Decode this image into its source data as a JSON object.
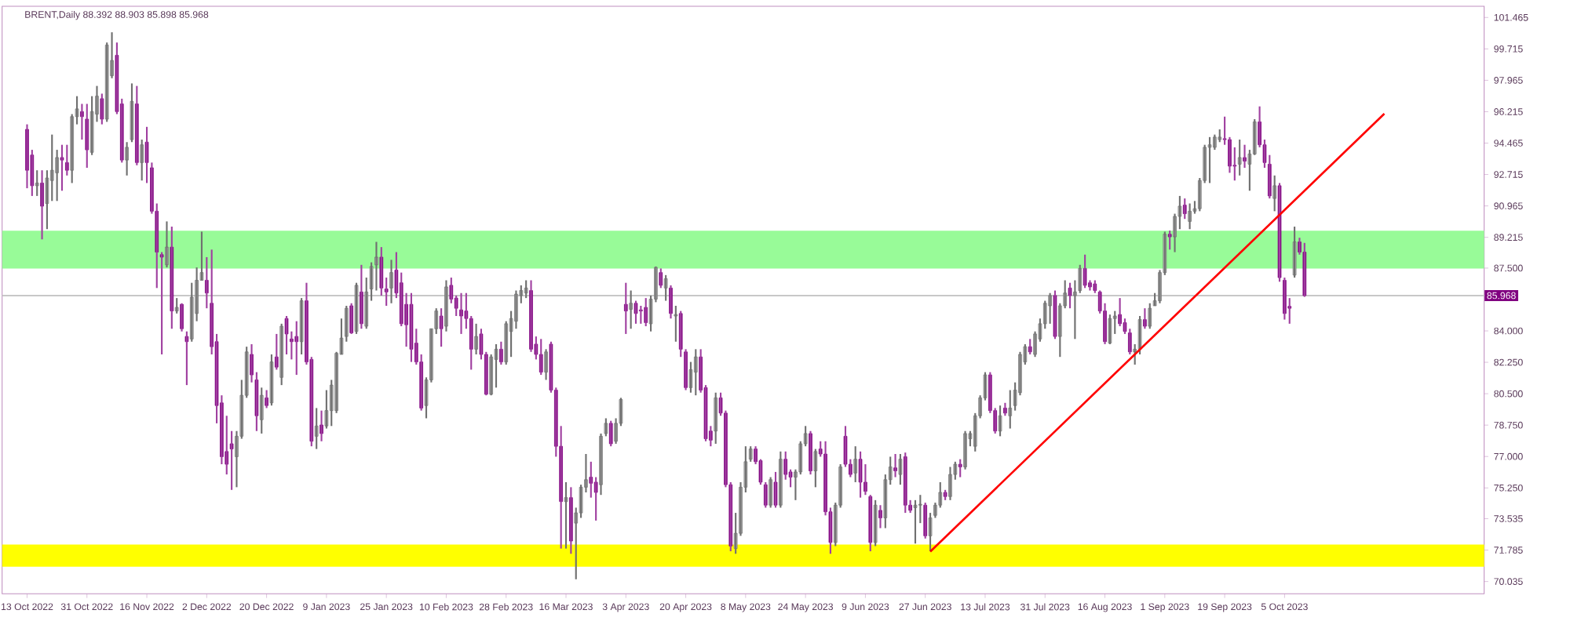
{
  "chart_data": {
    "type": "candlestick",
    "title": "BRENT,Daily  88.392 88.903 85.898 85.968",
    "categories": [
      "13 Oct 2022",
      null,
      null,
      null,
      null,
      null,
      null,
      null,
      null,
      null,
      null,
      null,
      "31 Oct 2022",
      null,
      null,
      null,
      null,
      null,
      null,
      null,
      null,
      null,
      null,
      null,
      "16 Nov 2022",
      null,
      null,
      null,
      null,
      null,
      null,
      null,
      null,
      null,
      null,
      null,
      "2 Dec 2022",
      null,
      null,
      null,
      null,
      null,
      null,
      null,
      null,
      null,
      null,
      null,
      "20 Dec 2022",
      null,
      null,
      null,
      null,
      null,
      null,
      null,
      null,
      null,
      null,
      null,
      "9 Jan 2023",
      null,
      null,
      null,
      null,
      null,
      null,
      null,
      null,
      null,
      null,
      null,
      "25 Jan 2023",
      null,
      null,
      null,
      null,
      null,
      null,
      null,
      null,
      null,
      null,
      null,
      "10 Feb 2023",
      null,
      null,
      null,
      null,
      null,
      null,
      null,
      null,
      null,
      null,
      null,
      "28 Feb 2023",
      null,
      null,
      null,
      null,
      null,
      null,
      null,
      null,
      null,
      null,
      null,
      "16 Mar 2023",
      null,
      null,
      null,
      null,
      null,
      null,
      null,
      null,
      null,
      null,
      null,
      "3 Apr 2023",
      null,
      null,
      null,
      null,
      null,
      null,
      null,
      null,
      null,
      null,
      null,
      "20 Apr 2023",
      null,
      null,
      null,
      null,
      null,
      null,
      null,
      null,
      null,
      null,
      null,
      "8 May 2023",
      null,
      null,
      null,
      null,
      null,
      null,
      null,
      null,
      null,
      null,
      null,
      "24 May 2023",
      null,
      null,
      null,
      null,
      null,
      null,
      null,
      null,
      null,
      null,
      null,
      "9 Jun 2023",
      null,
      null,
      null,
      null,
      null,
      null,
      null,
      null,
      null,
      null,
      null,
      "27 Jun 2023",
      null,
      null,
      null,
      null,
      null,
      null,
      null,
      null,
      null,
      null,
      null,
      "13 Jul 2023",
      null,
      null,
      null,
      null,
      null,
      null,
      null,
      null,
      null,
      null,
      null,
      "31 Jul 2023",
      null,
      null,
      null,
      null,
      null,
      null,
      null,
      null,
      null,
      null,
      null,
      "16 Aug 2023",
      null,
      null,
      null,
      null,
      null,
      null,
      null,
      null,
      null,
      null,
      null,
      "1 Sep 2023",
      null,
      null,
      null,
      null,
      null,
      null,
      null,
      null,
      null,
      null,
      null,
      "19 Sep 2023",
      null,
      null,
      null,
      null,
      null,
      null,
      null,
      null,
      null,
      null,
      null,
      "5 Oct 2023",
      null,
      null,
      null,
      null,
      null,
      null,
      null,
      null,
      null,
      null,
      null,
      null,
      null,
      null,
      null,
      null,
      null,
      null,
      null,
      null,
      null,
      null,
      null,
      null,
      null,
      null,
      null,
      null,
      null,
      null,
      null,
      null,
      null,
      null,
      null,
      null,
      null,
      null,
      null
    ],
    "ohlc": [
      [
        95.23,
        95.51,
        91.95,
        92.95
      ],
      [
        93.8,
        94.09,
        91.52,
        92.09
      ],
      [
        92.09,
        92.95,
        91.52,
        92.24
      ],
      [
        92.24,
        92.95,
        89.1,
        90.95
      ],
      [
        91.1,
        92.95,
        89.67,
        92.52
      ],
      [
        92.38,
        94.94,
        91.24,
        92.95
      ],
      [
        92.81,
        94.09,
        91.24,
        93.66
      ],
      [
        93.66,
        94.37,
        91.81,
        93.52
      ],
      [
        93.38,
        94.37,
        92.66,
        92.95
      ],
      [
        92.95,
        96.08,
        92.24,
        95.94
      ],
      [
        95.94,
        97.08,
        95.51,
        96.37
      ],
      [
        96.22,
        96.65,
        94.66,
        95.94
      ],
      [
        95.8,
        96.65,
        93.09,
        94.09
      ],
      [
        93.95,
        97.08,
        93.8,
        96.22
      ],
      [
        96.08,
        97.65,
        95.65,
        97.08
      ],
      [
        96.94,
        97.22,
        95.51,
        95.8
      ],
      [
        95.8,
        100.07,
        95.65,
        99.93
      ],
      [
        98.22,
        100.64,
        98.08,
        99.07
      ],
      [
        99.36,
        100.07,
        96.08,
        96.22
      ],
      [
        96.65,
        96.94,
        93.38,
        93.52
      ],
      [
        93.52,
        94.52,
        92.66,
        94.23
      ],
      [
        94.66,
        97.79,
        94.52,
        96.79
      ],
      [
        96.65,
        97.65,
        93.23,
        93.38
      ],
      [
        93.38,
        94.66,
        92.38,
        94.37
      ],
      [
        94.52,
        95.37,
        92.24,
        93.38
      ],
      [
        93.09,
        93.38,
        90.53,
        90.67
      ],
      [
        90.67,
        91.1,
        86.39,
        88.39
      ],
      [
        88.25,
        88.39,
        82.69,
        88.11
      ],
      [
        87.68,
        90.1,
        87.54,
        88.67
      ],
      [
        88.67,
        89.81,
        84.12,
        85.11
      ],
      [
        85.11,
        85.83,
        84.97,
        85.31
      ],
      [
        85.48,
        85.54,
        83.97,
        84.12
      ],
      [
        83.69,
        83.97,
        80.98,
        83.4
      ],
      [
        83.55,
        86.68,
        83.4,
        85.88
      ],
      [
        84.97,
        87.54,
        84.54,
        86.82
      ],
      [
        86.82,
        89.53,
        86.82,
        87.25
      ],
      [
        86.82,
        88.11,
        85.26,
        86.11
      ],
      [
        85.54,
        88.53,
        82.69,
        83.12
      ],
      [
        83.4,
        83.83,
        78.85,
        79.84
      ],
      [
        79.99,
        80.41,
        76.57,
        76.99
      ],
      [
        77.28,
        79.27,
        76.0,
        76.57
      ],
      [
        77.71,
        78.42,
        75.14,
        77.42
      ],
      [
        76.99,
        78.42,
        75.29,
        78.13
      ],
      [
        78.13,
        81.27,
        77.99,
        80.41
      ],
      [
        80.41,
        83.12,
        80.27,
        82.83
      ],
      [
        82.69,
        83.26,
        81.13,
        81.55
      ],
      [
        81.27,
        81.7,
        78.42,
        79.27
      ],
      [
        79.05,
        80.84,
        78.28,
        80.41
      ],
      [
        80.27,
        80.7,
        79.7,
        79.84
      ],
      [
        79.99,
        82.69,
        79.84,
        82.27
      ],
      [
        82.55,
        83.83,
        81.84,
        81.98
      ],
      [
        81.41,
        84.4,
        80.98,
        84.26
      ],
      [
        84.69,
        84.83,
        82.69,
        83.83
      ],
      [
        83.55,
        83.97,
        82.41,
        83.4
      ],
      [
        83.69,
        84.54,
        81.55,
        83.4
      ],
      [
        83.4,
        85.83,
        82.69,
        85.68
      ],
      [
        85.68,
        86.68,
        82.12,
        82.27
      ],
      [
        82.41,
        82.55,
        77.57,
        77.85
      ],
      [
        78.13,
        79.7,
        77.42,
        78.7
      ],
      [
        78.76,
        79.56,
        77.85,
        78.28
      ],
      [
        78.7,
        80.7,
        78.56,
        79.56
      ],
      [
        79.56,
        81.27,
        78.7,
        80.98
      ],
      [
        79.56,
        82.83,
        79.42,
        82.75
      ],
      [
        82.69,
        84.69,
        82.69,
        83.6
      ],
      [
        83.69,
        85.4,
        83.4,
        85.26
      ],
      [
        85.4,
        85.54,
        83.83,
        83.89
      ],
      [
        83.97,
        86.68,
        83.83,
        86.54
      ],
      [
        86.17,
        87.68,
        84.12,
        84.4
      ],
      [
        84.26,
        86.97,
        84.12,
        86.17
      ],
      [
        86.34,
        87.82,
        85.68,
        87.59
      ],
      [
        87.68,
        88.96,
        86.25,
        88.11
      ],
      [
        88.11,
        88.67,
        85.97,
        86.39
      ],
      [
        86.34,
        86.97,
        85.4,
        86.17
      ],
      [
        86.39,
        87.96,
        85.54,
        87.25
      ],
      [
        87.39,
        88.39,
        85.83,
        86.11
      ],
      [
        86.68,
        87.25,
        84.26,
        84.4
      ],
      [
        85.48,
        86.11,
        83.12,
        84.34
      ],
      [
        85.48,
        86.11,
        82.27,
        82.98
      ],
      [
        83.32,
        84.12,
        82.12,
        82.27
      ],
      [
        82.27,
        82.69,
        79.56,
        79.7
      ],
      [
        79.84,
        81.41,
        79.13,
        81.27
      ],
      [
        81.27,
        84.12,
        81.13,
        84.12
      ],
      [
        84.12,
        85.26,
        83.83,
        85.11
      ],
      [
        84.83,
        85.26,
        83.12,
        84.12
      ],
      [
        84.26,
        86.82,
        83.97,
        86.45
      ],
      [
        86.54,
        86.97,
        85.54,
        85.77
      ],
      [
        85.83,
        85.97,
        84.83,
        85.26
      ],
      [
        85.17,
        86.11,
        83.83,
        84.83
      ],
      [
        85.11,
        86.11,
        84.12,
        84.69
      ],
      [
        84.69,
        84.83,
        81.84,
        82.98
      ],
      [
        82.98,
        84.4,
        82.69,
        83.69
      ],
      [
        83.83,
        84.12,
        82.41,
        82.69
      ],
      [
        82.69,
        82.83,
        80.41,
        80.47
      ],
      [
        80.47,
        82.69,
        80.41,
        82.55
      ],
      [
        82.41,
        83.26,
        80.84,
        82.98
      ],
      [
        82.98,
        83.4,
        82.12,
        82.27
      ],
      [
        82.27,
        84.54,
        82.12,
        84.4
      ],
      [
        83.97,
        85.11,
        82.55,
        84.69
      ],
      [
        84.54,
        86.25,
        84.12,
        86.05
      ],
      [
        85.97,
        86.54,
        85.54,
        86.25
      ],
      [
        86.11,
        86.82,
        85.83,
        86.39
      ],
      [
        86.25,
        86.82,
        82.83,
        82.98
      ],
      [
        83.26,
        83.69,
        82.41,
        82.69
      ],
      [
        82.69,
        83.55,
        81.55,
        81.7
      ],
      [
        81.7,
        82.98,
        81.27,
        82.83
      ],
      [
        83.26,
        83.4,
        80.56,
        80.7
      ],
      [
        80.7,
        80.84,
        76.99,
        77.57
      ],
      [
        77.57,
        78.7,
        71.87,
        74.49
      ],
      [
        74.49,
        75.57,
        71.87,
        74.71
      ],
      [
        74.71,
        75.29,
        71.58,
        72.29
      ],
      [
        73.29,
        74.15,
        70.16,
        73.86
      ],
      [
        73.86,
        75.43,
        73.58,
        75.29
      ],
      [
        75.29,
        77.14,
        75.0,
        75.71
      ],
      [
        75.85,
        76.71,
        74.71,
        75.51
      ],
      [
        75.57,
        75.85,
        73.43,
        75.0
      ],
      [
        75.43,
        78.28,
        74.86,
        78.13
      ],
      [
        78.28,
        79.13,
        78.13,
        78.85
      ],
      [
        78.85,
        78.99,
        77.57,
        77.71
      ],
      [
        77.85,
        79.13,
        77.71,
        78.85
      ],
      [
        78.85,
        80.27,
        78.7,
        80.18
      ],
      [
        85.48,
        86.68,
        83.83,
        85.11
      ],
      [
        85.2,
        86.25,
        84.12,
        85.54
      ],
      [
        85.54,
        85.68,
        84.4,
        84.97
      ],
      [
        85.17,
        85.4,
        84.4,
        85.11
      ],
      [
        85.31,
        85.83,
        84.26,
        84.46
      ],
      [
        84.4,
        85.97,
        83.97,
        85.77
      ],
      [
        85.77,
        87.59,
        85.6,
        87.54
      ],
      [
        87.25,
        87.48,
        86.39,
        86.54
      ],
      [
        86.39,
        87.11,
        85.68,
        86.91
      ],
      [
        86.39,
        86.54,
        84.69,
        84.97
      ],
      [
        84.83,
        85.4,
        83.4,
        84.91
      ],
      [
        84.97,
        85.11,
        82.55,
        82.98
      ],
      [
        82.83,
        82.98,
        80.7,
        80.84
      ],
      [
        80.84,
        82.27,
        80.56,
        81.84
      ],
      [
        81.7,
        82.98,
        80.41,
        82.55
      ],
      [
        82.55,
        82.98,
        80.56,
        80.7
      ],
      [
        80.84,
        80.98,
        77.85,
        77.99
      ],
      [
        78.42,
        78.7,
        77.57,
        77.91
      ],
      [
        78.42,
        80.56,
        77.71,
        80.27
      ],
      [
        80.27,
        80.56,
        79.27,
        79.42
      ],
      [
        79.42,
        79.56,
        75.29,
        75.43
      ],
      [
        75.43,
        75.57,
        71.72,
        72.01
      ],
      [
        71.87,
        73.86,
        71.58,
        72.72
      ],
      [
        72.72,
        75.57,
        72.58,
        75.29
      ],
      [
        75.29,
        77.57,
        75.0,
        76.71
      ],
      [
        76.85,
        77.57,
        76.71,
        77.42
      ],
      [
        77.42,
        77.57,
        76.57,
        76.71
      ],
      [
        76.77,
        76.85,
        75.43,
        75.57
      ],
      [
        75.43,
        75.57,
        74.15,
        74.29
      ],
      [
        74.29,
        75.85,
        74.15,
        75.71
      ],
      [
        75.57,
        76.14,
        74.15,
        74.29
      ],
      [
        74.29,
        77.28,
        74.15,
        76.85
      ],
      [
        76.85,
        77.28,
        75.71,
        76.0
      ],
      [
        76.14,
        76.28,
        75.29,
        75.85
      ],
      [
        75.85,
        76.28,
        74.57,
        76.14
      ],
      [
        76.14,
        77.85,
        76.0,
        77.71
      ],
      [
        77.71,
        78.7,
        77.57,
        78.28
      ],
      [
        78.28,
        78.42,
        76.0,
        76.2
      ],
      [
        76.2,
        77.42,
        75.29,
        77.28
      ],
      [
        77.42,
        77.85,
        76.99,
        77.14
      ],
      [
        77.14,
        77.85,
        73.72,
        73.92
      ],
      [
        73.92,
        74.15,
        71.58,
        72.21
      ],
      [
        72.21,
        74.43,
        72.01,
        74.29
      ],
      [
        74.29,
        76.57,
        74.15,
        76.42
      ],
      [
        78.13,
        78.7,
        76.42,
        76.57
      ],
      [
        76.57,
        76.85,
        75.85,
        76.0
      ],
      [
        76.08,
        77.57,
        75.57,
        76.85
      ],
      [
        76.85,
        77.28,
        74.71,
        75.57
      ],
      [
        75.57,
        76.57,
        74.86,
        75.06
      ],
      [
        74.77,
        74.86,
        71.72,
        72.21
      ],
      [
        72.21,
        74.57,
        72.01,
        74.29
      ],
      [
        74.0,
        74.29,
        73.01,
        73.58
      ],
      [
        73.58,
        76.0,
        73.01,
        75.71
      ],
      [
        75.71,
        76.99,
        75.43,
        76.42
      ],
      [
        76.37,
        77.14,
        75.85,
        76.2
      ],
      [
        76.0,
        77.14,
        75.43,
        76.85
      ],
      [
        76.99,
        77.22,
        73.86,
        74.29
      ],
      [
        74.29,
        74.57,
        73.86,
        74.0
      ],
      [
        74.15,
        74.57,
        72.15,
        74.29
      ],
      [
        74.29,
        74.86,
        73.29,
        74.34
      ],
      [
        74.29,
        74.43,
        72.43,
        72.58
      ],
      [
        72.58,
        73.86,
        71.72,
        73.58
      ],
      [
        73.72,
        74.43,
        73.58,
        74.29
      ],
      [
        74.29,
        75.57,
        74.15,
        75.0
      ],
      [
        75.0,
        75.14,
        74.57,
        74.77
      ],
      [
        74.77,
        76.42,
        74.57,
        76.0
      ],
      [
        76.0,
        76.71,
        75.71,
        76.57
      ],
      [
        76.57,
        76.85,
        75.85,
        76.42
      ],
      [
        76.42,
        78.42,
        76.28,
        78.28
      ],
      [
        77.99,
        78.42,
        77.57,
        78.28
      ],
      [
        77.57,
        79.42,
        77.28,
        79.27
      ],
      [
        79.27,
        80.41,
        79.13,
        80.27
      ],
      [
        80.27,
        81.7,
        80.13,
        81.55
      ],
      [
        81.55,
        81.7,
        79.42,
        79.56
      ],
      [
        79.56,
        79.7,
        78.28,
        78.42
      ],
      [
        78.42,
        79.84,
        78.13,
        79.27
      ],
      [
        79.7,
        79.99,
        79.27,
        79.42
      ],
      [
        79.27,
        80.7,
        78.56,
        79.7
      ],
      [
        79.84,
        81.13,
        79.56,
        80.7
      ],
      [
        80.56,
        82.83,
        80.41,
        82.69
      ],
      [
        82.27,
        83.26,
        82.12,
        83.12
      ],
      [
        83.12,
        83.55,
        82.69,
        82.83
      ],
      [
        82.69,
        83.97,
        82.55,
        83.83
      ],
      [
        83.55,
        84.69,
        83.4,
        84.4
      ],
      [
        84.4,
        85.68,
        84.12,
        85.54
      ],
      [
        85.4,
        86.11,
        84.4,
        85.97
      ],
      [
        85.97,
        86.25,
        83.55,
        83.69
      ],
      [
        83.69,
        85.54,
        82.55,
        85.4
      ],
      [
        85.4,
        86.82,
        85.26,
        86.11
      ],
      [
        86.39,
        86.68,
        85.26,
        85.97
      ],
      [
        85.97,
        86.82,
        83.55,
        86.17
      ],
      [
        86.25,
        87.68,
        86.11,
        87.48
      ],
      [
        87.48,
        88.25,
        86.39,
        86.54
      ],
      [
        86.68,
        86.82,
        86.25,
        86.45
      ],
      [
        86.62,
        86.82,
        86.11,
        86.25
      ],
      [
        86.17,
        86.25,
        84.97,
        85.11
      ],
      [
        85.11,
        85.54,
        83.26,
        83.4
      ],
      [
        83.32,
        84.91,
        83.26,
        84.69
      ],
      [
        84.69,
        85.11,
        83.83,
        84.83
      ],
      [
        84.91,
        85.83,
        84.26,
        84.4
      ],
      [
        84.46,
        84.69,
        83.83,
        83.97
      ],
      [
        83.89,
        84.12,
        82.69,
        82.83
      ],
      [
        82.83,
        83.26,
        82.12,
        82.98
      ],
      [
        82.98,
        84.83,
        82.69,
        84.63
      ],
      [
        84.63,
        85.26,
        84.12,
        84.26
      ],
      [
        84.26,
        85.54,
        84.12,
        85.26
      ],
      [
        85.4,
        86.11,
        85.4,
        85.68
      ],
      [
        85.68,
        87.39,
        85.54,
        87.25
      ],
      [
        87.25,
        89.53,
        87.11,
        89.39
      ],
      [
        89.39,
        89.59,
        88.53,
        89.24
      ],
      [
        89.24,
        90.53,
        88.39,
        90.38
      ],
      [
        90.38,
        91.52,
        89.67,
        90.95
      ],
      [
        91.01,
        91.38,
        90.24,
        90.53
      ],
      [
        90.1,
        91.1,
        89.67,
        90.67
      ],
      [
        90.67,
        91.24,
        90.53,
        90.81
      ],
      [
        90.81,
        92.52,
        90.67,
        92.38
      ],
      [
        92.38,
        94.37,
        92.24,
        94.23
      ],
      [
        94.23,
        94.8,
        92.24,
        94.37
      ],
      [
        94.23,
        94.94,
        94.09,
        94.8
      ],
      [
        94.66,
        95.23,
        94.52,
        94.8
      ],
      [
        94.71,
        95.94,
        94.37,
        94.66
      ],
      [
        94.66,
        94.8,
        92.81,
        93.18
      ],
      [
        93.23,
        94.23,
        92.38,
        93.18
      ],
      [
        93.29,
        94.66,
        92.66,
        93.66
      ],
      [
        93.66,
        94.37,
        93.09,
        93.46
      ],
      [
        93.29,
        94.09,
        91.81,
        93.86
      ],
      [
        93.86,
        95.8,
        93.8,
        95.65
      ],
      [
        95.65,
        96.51,
        94.23,
        94.37
      ],
      [
        94.37,
        94.66,
        93.09,
        93.38
      ],
      [
        93.29,
        93.8,
        91.38,
        91.52
      ],
      [
        91.38,
        92.66,
        90.67,
        92.09
      ],
      [
        92.09,
        92.24,
        86.74,
        86.97
      ],
      [
        86.82,
        86.97,
        84.63,
        84.97
      ],
      [
        85.37,
        85.83,
        84.4,
        85.26
      ],
      [
        87.11,
        89.81,
        86.97,
        88.96
      ],
      [
        88.96,
        89.19,
        88.25,
        88.39
      ],
      [
        88.392,
        88.903,
        85.898,
        85.968
      ],
      null,
      null,
      null,
      null,
      null,
      null,
      null,
      null,
      null,
      null,
      null,
      null,
      null,
      null,
      null,
      null,
      null,
      null,
      null,
      null,
      null,
      null,
      null,
      null,
      null,
      null,
      null,
      null,
      null,
      null,
      null,
      null,
      null,
      null,
      null
    ],
    "series": [
      {
        "type": "line",
        "color": "#ff0000",
        "values": [
          null,
          null,
          null,
          null,
          null,
          null,
          null,
          null,
          null,
          null,
          null,
          null,
          null,
          null,
          null,
          null,
          null,
          null,
          null,
          null,
          null,
          null,
          null,
          null,
          null,
          null,
          null,
          null,
          null,
          null,
          null,
          null,
          null,
          null,
          null,
          null,
          null,
          null,
          null,
          null,
          null,
          null,
          null,
          null,
          null,
          null,
          null,
          null,
          null,
          null,
          null,
          null,
          null,
          null,
          null,
          null,
          null,
          null,
          null,
          null,
          null,
          null,
          null,
          null,
          null,
          null,
          null,
          null,
          null,
          null,
          null,
          null,
          null,
          null,
          null,
          null,
          null,
          null,
          null,
          null,
          null,
          null,
          null,
          null,
          null,
          null,
          null,
          null,
          null,
          null,
          null,
          null,
          null,
          null,
          null,
          null,
          null,
          null,
          null,
          null,
          null,
          null,
          null,
          null,
          null,
          null,
          null,
          null,
          null,
          null,
          null,
          null,
          null,
          null,
          null,
          null,
          null,
          null,
          null,
          null,
          null,
          null,
          null,
          null,
          null,
          null,
          null,
          null,
          null,
          null,
          null,
          null,
          null,
          null,
          null,
          null,
          null,
          null,
          null,
          null,
          null,
          null,
          null,
          null,
          null,
          null,
          null,
          null,
          null,
          null,
          null,
          null,
          null,
          null,
          null,
          null,
          null,
          null,
          null,
          null,
          null,
          null,
          null,
          null,
          null,
          null,
          null,
          null,
          null,
          null,
          null,
          null,
          null,
          null,
          null,
          null,
          null,
          null,
          null,
          null,
          null,
          71.7,
          null,
          null,
          null,
          null,
          null,
          null,
          null,
          null,
          null,
          null,
          null,
          null,
          null,
          null,
          null,
          null,
          null,
          null,
          null,
          null,
          null,
          null,
          null,
          null,
          null,
          null,
          null,
          null,
          null,
          null,
          null,
          null,
          null,
          null,
          null,
          null,
          null,
          null,
          null,
          null,
          null,
          null,
          null,
          null,
          null,
          null,
          null,
          null,
          null,
          null,
          null,
          null,
          null,
          null,
          null,
          null,
          null,
          null,
          null,
          null,
          null,
          null,
          null,
          null,
          null,
          null,
          null,
          null,
          null,
          null,
          null,
          null,
          null,
          null,
          null,
          null,
          null,
          null,
          null,
          null,
          null,
          null,
          null,
          null,
          null,
          null,
          null,
          null,
          null,
          null,
          96.1,
          null,
          null,
          null,
          null,
          null,
          null,
          null,
          null,
          null,
          null,
          null,
          null,
          null,
          null,
          null,
          null,
          null,
          null,
          null
        ]
      }
    ],
    "ylim": [
      69.35,
      102.09
    ],
    "yticks": [
      {
        "value": 70.035,
        "label": "70.035"
      },
      {
        "value": 71.785,
        "label": "71.785"
      },
      {
        "value": 73.535,
        "label": "73.535"
      },
      {
        "value": 75.25,
        "label": "75.250"
      },
      {
        "value": 77.0,
        "label": "77.000"
      },
      {
        "value": 78.75,
        "label": "78.750"
      },
      {
        "value": 80.5,
        "label": "80.500"
      },
      {
        "value": 82.25,
        "label": "82.250"
      },
      {
        "value": 84.0,
        "label": "84.000"
      },
      {
        "value": 87.5,
        "label": "87.500"
      },
      {
        "value": 89.215,
        "label": "89.215"
      },
      {
        "value": 90.965,
        "label": "90.965"
      },
      {
        "value": 92.715,
        "label": "92.715"
      },
      {
        "value": 94.465,
        "label": "94.465"
      },
      {
        "value": 96.215,
        "label": "96.215"
      },
      {
        "value": 97.965,
        "label": "97.965"
      },
      {
        "value": 99.715,
        "label": "99.715"
      },
      {
        "value": 101.465,
        "label": "101.465"
      }
    ],
    "bands": [
      {
        "axis": "y",
        "from": 87.47,
        "to": 89.58,
        "color": "#98fb98"
      },
      {
        "axis": "y",
        "from": 70.86,
        "to": 72.09,
        "color": "#ffff00"
      }
    ],
    "ref_lines": [
      {
        "axis": "y",
        "value": 85.968,
        "label": "85.968",
        "color": "#c8c8c8"
      }
    ]
  }
}
